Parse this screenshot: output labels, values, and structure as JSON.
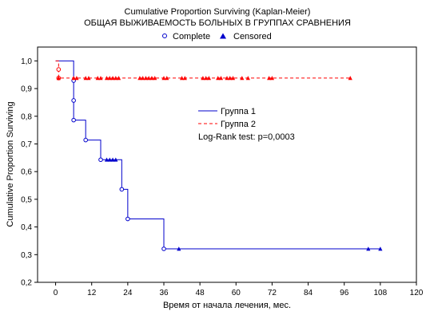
{
  "chart_data": {
    "type": "line",
    "step": true,
    "title": "Cumulative Proportion Surviving (Kaplan-Meier)",
    "subtitle": "ОБЩАЯ ВЫЖИВАЕМОСТЬ БОЛЬНЫХ В ГРУППАХ СРАВНЕНИЯ",
    "xlabel": "Время от начала лечения, мес.",
    "ylabel": "Cumulative Proportion Surviving",
    "xlim": [
      -6,
      120
    ],
    "ylim": [
      0.2,
      1.05
    ],
    "xticks": [
      0,
      12,
      24,
      36,
      48,
      60,
      72,
      84,
      96,
      108,
      120
    ],
    "yticks": [
      0.2,
      0.3,
      0.4,
      0.5,
      0.6,
      0.7,
      0.8,
      0.9,
      1.0
    ],
    "ytick_labels": [
      "0,2",
      "0,3",
      "0,4",
      "0,5",
      "0,6",
      "0,7",
      "0,8",
      "0,9",
      "1,0"
    ],
    "grid": false,
    "marker_legend": {
      "position": "top",
      "items": [
        {
          "label": "Complete",
          "marker": "circle"
        },
        {
          "label": "Censored",
          "marker": "triangle"
        }
      ]
    },
    "series_legend": {
      "position": "center",
      "items": [
        {
          "label": "Группа 1",
          "style": "solid",
          "color": "#0000cc"
        },
        {
          "label": "Группа 2",
          "style": "dashed",
          "color": "#ff0000"
        }
      ]
    },
    "annotation": "Log-Rank test: p=0,0003",
    "series": [
      {
        "name": "Группа 1",
        "color": "#0000cc",
        "dash": "solid",
        "steps": [
          [
            0,
            1.0
          ],
          [
            6,
            0.929
          ],
          [
            6,
            0.857
          ],
          [
            6,
            0.786
          ],
          [
            10,
            0.714
          ],
          [
            15,
            0.643
          ],
          [
            22,
            0.536
          ],
          [
            24,
            0.429
          ],
          [
            36,
            0.321
          ],
          [
            108,
            0.321
          ]
        ],
        "complete": [
          [
            6,
            0.929
          ],
          [
            6,
            0.857
          ],
          [
            6,
            0.786
          ],
          [
            10,
            0.714
          ],
          [
            15,
            0.643
          ],
          [
            22,
            0.536
          ],
          [
            24,
            0.429
          ],
          [
            36,
            0.321
          ]
        ],
        "censored": [
          [
            17,
            0.643
          ],
          [
            18,
            0.643
          ],
          [
            19,
            0.643
          ],
          [
            20,
            0.643
          ],
          [
            41,
            0.321
          ],
          [
            104,
            0.321
          ],
          [
            108,
            0.321
          ]
        ]
      },
      {
        "name": "Группа 2",
        "color": "#ff0000",
        "dash": "dashed",
        "steps": [
          [
            0,
            1.0
          ],
          [
            1,
            0.938
          ],
          [
            98,
            0.938
          ]
        ],
        "complete": [
          [
            1,
            0.969
          ],
          [
            1,
            0.938
          ]
        ],
        "censored": [
          [
            1,
            0.938
          ],
          [
            6,
            0.938
          ],
          [
            7,
            0.938
          ],
          [
            10,
            0.938
          ],
          [
            11,
            0.938
          ],
          [
            14,
            0.938
          ],
          [
            15,
            0.938
          ],
          [
            17,
            0.938
          ],
          [
            18,
            0.938
          ],
          [
            19,
            0.938
          ],
          [
            20,
            0.938
          ],
          [
            21,
            0.938
          ],
          [
            28,
            0.938
          ],
          [
            29,
            0.938
          ],
          [
            30,
            0.938
          ],
          [
            31,
            0.938
          ],
          [
            32,
            0.938
          ],
          [
            33,
            0.938
          ],
          [
            36,
            0.938
          ],
          [
            37,
            0.938
          ],
          [
            42,
            0.938
          ],
          [
            43,
            0.938
          ],
          [
            49,
            0.938
          ],
          [
            50,
            0.938
          ],
          [
            51,
            0.938
          ],
          [
            54,
            0.938
          ],
          [
            55,
            0.938
          ],
          [
            57,
            0.938
          ],
          [
            58,
            0.938
          ],
          [
            59,
            0.938
          ],
          [
            62,
            0.938
          ],
          [
            64,
            0.938
          ],
          [
            71,
            0.938
          ],
          [
            72,
            0.938
          ],
          [
            98,
            0.938
          ]
        ]
      }
    ]
  }
}
